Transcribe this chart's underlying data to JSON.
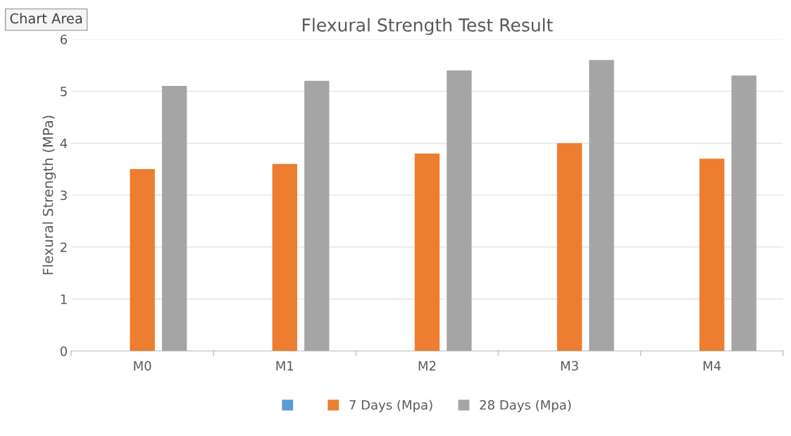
{
  "chart_data": {
    "type": "bar",
    "title": "Flexural Strength Test Result",
    "ylabel": "Flexural Strength (MPa)",
    "categories": [
      "M0",
      "M1",
      "M2",
      "M3",
      "M4"
    ],
    "series": [
      {
        "color": "#5b9bd5",
        "values": [
          null,
          null,
          null,
          null,
          null
        ]
      },
      {
        "name": "7 Days (Mpa)",
        "color": "#ed7d31",
        "values": [
          3.5,
          3.6,
          3.8,
          4.0,
          3.7
        ]
      },
      {
        "name": "28 Days (Mpa)",
        "color": "#a5a5a5",
        "values": [
          5.1,
          5.2,
          5.4,
          5.6,
          5.3
        ]
      }
    ],
    "ylim": [
      0,
      6
    ],
    "yticks": [
      0,
      1,
      2,
      3,
      4,
      5,
      6
    ],
    "grid": "y",
    "legend": "bottom",
    "annotations": [
      "Chart Area"
    ]
  }
}
